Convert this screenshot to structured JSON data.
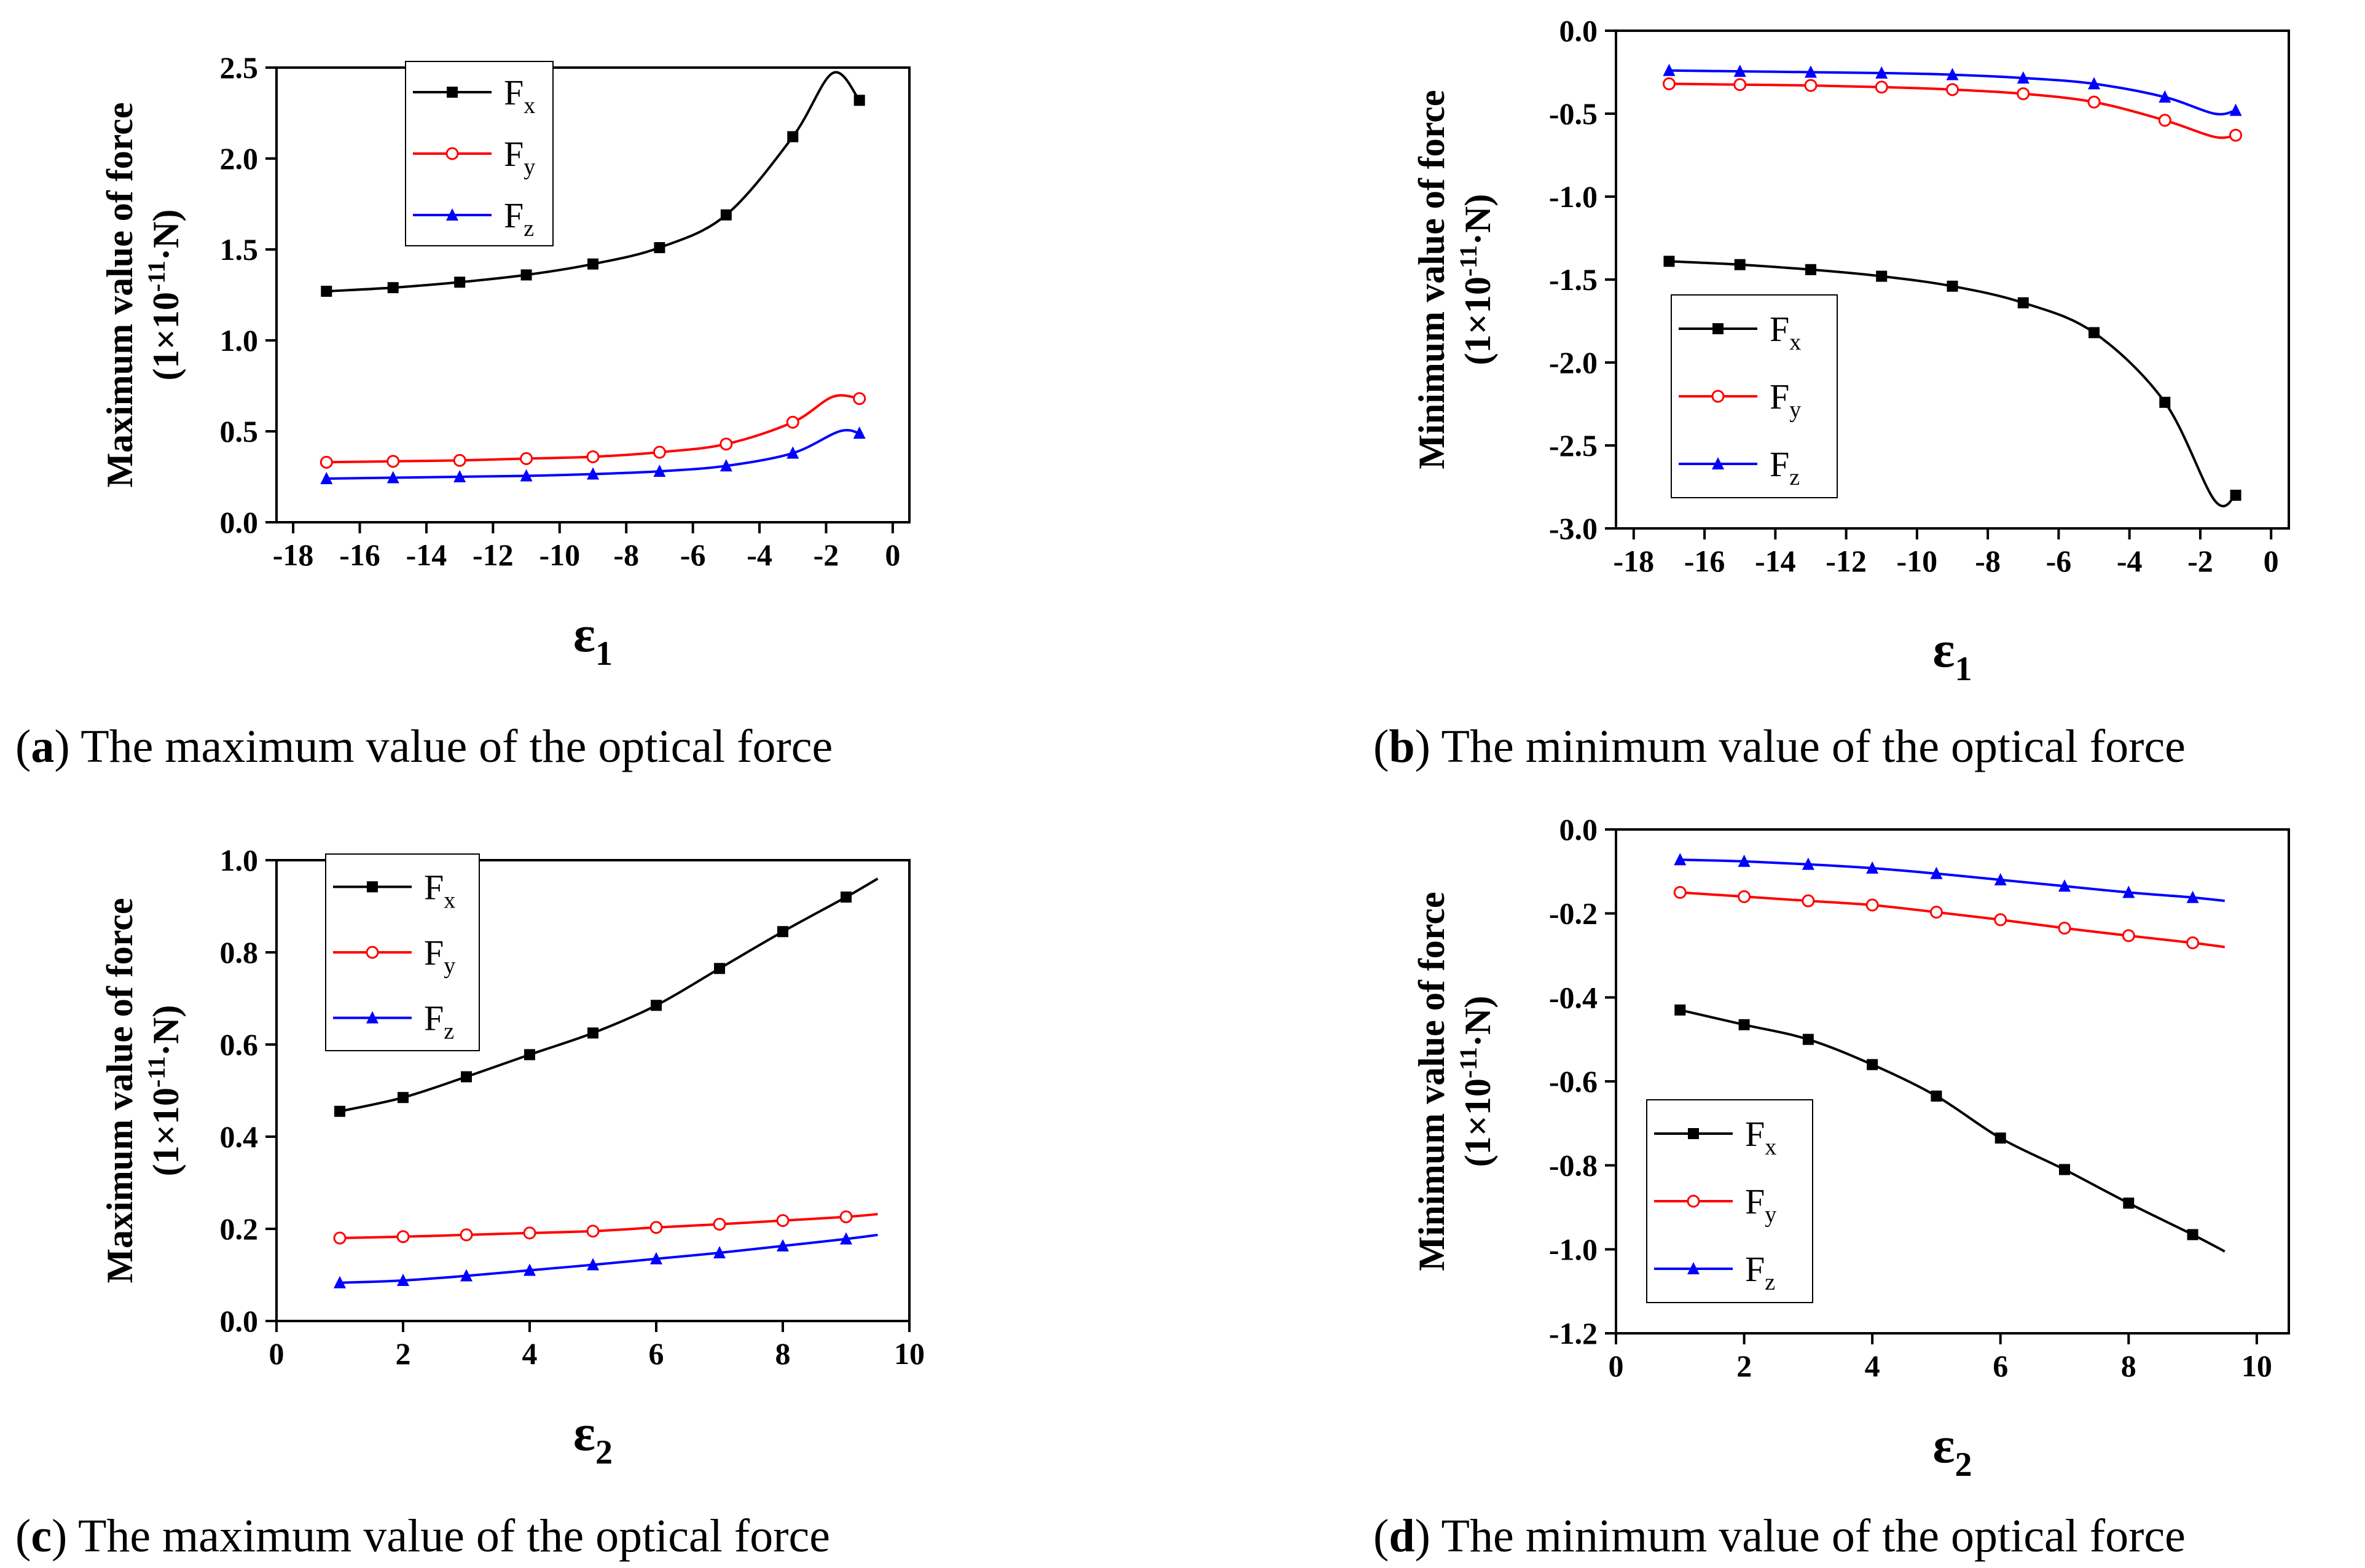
{
  "figure": {
    "panels": [
      {
        "id": "a",
        "caption_letter": "a",
        "caption_text": "The maximum value of the optical force",
        "ylabel_main": "Maximum value of force",
        "ylabel_unit_prefix": "(1×10",
        "ylabel_unit_exp": "-11",
        "ylabel_unit_suffix": "·N)",
        "xlabel_symbol": "ε",
        "xlabel_sub": "1",
        "legend": {
          "position": "top-left",
          "entries": [
            {
              "name": "F",
              "sub": "x"
            },
            {
              "name": "F",
              "sub": "y"
            },
            {
              "name": "F",
              "sub": "z"
            }
          ]
        }
      },
      {
        "id": "b",
        "caption_letter": "b",
        "caption_text": "The minimum value of the optical force",
        "ylabel_main": "Minimum value of force",
        "ylabel_unit_prefix": "(1×10",
        "ylabel_unit_exp": "-11",
        "ylabel_unit_suffix": "·N)",
        "xlabel_symbol": "ε",
        "xlabel_sub": "1",
        "legend": {
          "position": "bottom-left",
          "entries": [
            {
              "name": "F",
              "sub": "x"
            },
            {
              "name": "F",
              "sub": "y"
            },
            {
              "name": "F",
              "sub": "z"
            }
          ]
        }
      },
      {
        "id": "c",
        "caption_letter": "c",
        "caption_text": "The maximum value of the optical force",
        "ylabel_main": "Maximum value of force",
        "ylabel_unit_prefix": "(1×10",
        "ylabel_unit_exp": "-11",
        "ylabel_unit_suffix": "·N)",
        "xlabel_symbol": "ε",
        "xlabel_sub": "2",
        "legend": {
          "position": "top-left",
          "entries": [
            {
              "name": "F",
              "sub": "x"
            },
            {
              "name": "F",
              "sub": "y"
            },
            {
              "name": "F",
              "sub": "z"
            }
          ]
        }
      },
      {
        "id": "d",
        "caption_letter": "d",
        "caption_text": "The minimum value of the optical force",
        "ylabel_main": "Minimum value of force",
        "ylabel_unit_prefix": "(1×10",
        "ylabel_unit_exp": "-11",
        "ylabel_unit_suffix": "·N)",
        "xlabel_symbol": "ε",
        "xlabel_sub": "2",
        "legend": {
          "position": "bottom-left",
          "entries": [
            {
              "name": "F",
              "sub": "x"
            },
            {
              "name": "F",
              "sub": "y"
            },
            {
              "name": "F",
              "sub": "z"
            }
          ]
        }
      }
    ]
  },
  "colors": {
    "Fx": "#000000",
    "Fy": "#ff0000",
    "Fz": "#0000ff"
  },
  "chart_data": [
    {
      "type": "line",
      "panel": "a",
      "title": "",
      "xlabel": "ε1",
      "ylabel": "Maximum value of force (1×10-11·N)",
      "xlim": [
        -18.5,
        0.5
      ],
      "ylim": [
        0.0,
        2.5
      ],
      "xticks": [
        -18,
        -16,
        -14,
        -12,
        -10,
        -8,
        -6,
        -4,
        -2,
        0
      ],
      "yticks": [
        0.0,
        0.5,
        1.0,
        1.5,
        2.0,
        2.5
      ],
      "x": [
        -17,
        -15,
        -13,
        -11,
        -9,
        -7,
        -5,
        -3,
        -1
      ],
      "series": [
        {
          "name": "Fx",
          "marker": "square",
          "values": [
            1.27,
            1.29,
            1.32,
            1.36,
            1.42,
            1.51,
            1.69,
            2.12,
            2.32
          ],
          "curve_extra": [
            {
              "x": -1.8,
              "y": 2.47
            }
          ]
        },
        {
          "name": "Fy",
          "marker": "circle",
          "values": [
            0.33,
            0.335,
            0.34,
            0.35,
            0.36,
            0.385,
            0.43,
            0.55,
            0.68
          ],
          "curve_extra": [
            {
              "x": -1.8,
              "y": 0.69
            }
          ]
        },
        {
          "name": "Fz",
          "marker": "triangle",
          "values": [
            0.24,
            0.245,
            0.25,
            0.255,
            0.265,
            0.28,
            0.31,
            0.38,
            0.49
          ],
          "curve_extra": [
            {
              "x": -1.6,
              "y": 0.5
            }
          ]
        }
      ]
    },
    {
      "type": "line",
      "panel": "b",
      "title": "",
      "xlabel": "ε1",
      "ylabel": "Minimum value of force (1×10-11·N)",
      "xlim": [
        -18.5,
        0.5
      ],
      "ylim": [
        -3.0,
        0.0
      ],
      "xticks": [
        -18,
        -16,
        -14,
        -12,
        -10,
        -8,
        -6,
        -4,
        -2,
        0
      ],
      "yticks": [
        0.0,
        -0.5,
        -1.0,
        -1.5,
        -2.0,
        -2.5,
        -3.0
      ],
      "x": [
        -17,
        -15,
        -13,
        -11,
        -9,
        -7,
        -5,
        -3,
        -1
      ],
      "series": [
        {
          "name": "Fx",
          "marker": "square",
          "values": [
            -1.39,
            -1.41,
            -1.44,
            -1.48,
            -1.54,
            -1.64,
            -1.82,
            -2.24,
            -2.8
          ],
          "curve_extra": [
            {
              "x": -1.6,
              "y": -2.83
            }
          ]
        },
        {
          "name": "Fy",
          "marker": "circle",
          "values": [
            -0.32,
            -0.325,
            -0.33,
            -0.34,
            -0.355,
            -0.38,
            -0.43,
            -0.54,
            -0.63
          ],
          "curve_extra": [
            {
              "x": -1.6,
              "y": -0.64
            }
          ]
        },
        {
          "name": "Fz",
          "marker": "triangle",
          "values": [
            -0.24,
            -0.245,
            -0.25,
            -0.255,
            -0.265,
            -0.285,
            -0.32,
            -0.4,
            -0.48
          ],
          "curve_extra": [
            {
              "x": -1.6,
              "y": -0.5
            }
          ]
        }
      ]
    },
    {
      "type": "line",
      "panel": "c",
      "title": "",
      "xlabel": "ε2",
      "ylabel": "Maximum value of force (1×10-11·N)",
      "xlim": [
        0,
        10
      ],
      "ylim": [
        0.0,
        1.0
      ],
      "xticks": [
        0,
        2,
        4,
        6,
        8,
        10
      ],
      "yticks": [
        0.0,
        0.2,
        0.4,
        0.6,
        0.8,
        1.0
      ],
      "x": [
        1,
        2,
        3,
        4,
        5,
        6,
        7,
        8,
        9
      ],
      "series": [
        {
          "name": "Fx",
          "marker": "square",
          "values": [
            0.455,
            0.485,
            0.53,
            0.578,
            0.625,
            0.685,
            0.765,
            0.845,
            0.92
          ],
          "curve_extra": [
            {
              "x": 9.5,
              "y": 0.96
            }
          ]
        },
        {
          "name": "Fy",
          "marker": "circle",
          "values": [
            0.18,
            0.183,
            0.187,
            0.191,
            0.195,
            0.203,
            0.21,
            0.218,
            0.226
          ],
          "curve_extra": [
            {
              "x": 9.5,
              "y": 0.232
            }
          ]
        },
        {
          "name": "Fz",
          "marker": "triangle",
          "values": [
            0.083,
            0.088,
            0.098,
            0.11,
            0.122,
            0.135,
            0.148,
            0.163,
            0.178
          ],
          "curve_extra": [
            {
              "x": 9.5,
              "y": 0.187
            }
          ]
        }
      ]
    },
    {
      "type": "line",
      "panel": "d",
      "title": "",
      "xlabel": "ε2",
      "ylabel": "Minimum value of force (1×10-11·N)",
      "xlim": [
        0,
        10.5
      ],
      "ylim": [
        -1.2,
        0.0
      ],
      "xticks": [
        0,
        2,
        4,
        6,
        8,
        10
      ],
      "yticks": [
        0.0,
        -0.2,
        -0.4,
        -0.6,
        -0.8,
        -1.0,
        -1.2
      ],
      "x": [
        1,
        2,
        3,
        4,
        5,
        6,
        7,
        8,
        9
      ],
      "series": [
        {
          "name": "Fx",
          "marker": "square",
          "values": [
            -0.43,
            -0.465,
            -0.5,
            -0.56,
            -0.635,
            -0.735,
            -0.81,
            -0.89,
            -0.965
          ],
          "curve_extra": [
            {
              "x": 9.5,
              "y": -1.005
            }
          ]
        },
        {
          "name": "Fy",
          "marker": "circle",
          "values": [
            -0.15,
            -0.16,
            -0.17,
            -0.18,
            -0.197,
            -0.215,
            -0.235,
            -0.253,
            -0.27
          ],
          "curve_extra": [
            {
              "x": 9.5,
              "y": -0.28
            }
          ]
        },
        {
          "name": "Fz",
          "marker": "triangle",
          "values": [
            -0.072,
            -0.076,
            -0.083,
            -0.092,
            -0.105,
            -0.12,
            -0.135,
            -0.15,
            -0.162
          ],
          "curve_extra": [
            {
              "x": 9.5,
              "y": -0.17
            }
          ]
        }
      ]
    }
  ]
}
